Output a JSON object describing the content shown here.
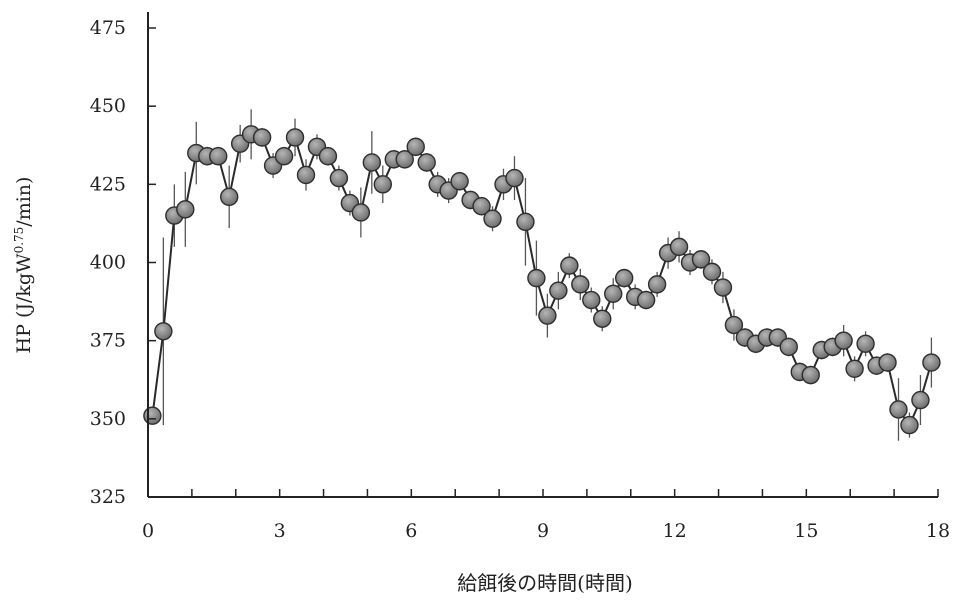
{
  "chart_data": {
    "type": "scatter",
    "title": "",
    "xlabel": "給餌後の時間(時間)",
    "ylabel_base": "HP (J/kgW",
    "ylabel_sup": "0.75",
    "ylabel_tail": "/min)",
    "xlim": [
      0,
      18
    ],
    "ylim": [
      325,
      475
    ],
    "xticks": [
      0,
      3,
      6,
      9,
      12,
      15,
      18
    ],
    "yticks": [
      325,
      350,
      375,
      400,
      425,
      450,
      475
    ],
    "grid": false,
    "series": [
      {
        "x": [
          0.1,
          0.35,
          0.6,
          0.85,
          1.1,
          1.35,
          1.6,
          1.85,
          2.1,
          2.35,
          2.6,
          2.85,
          3.1,
          3.35,
          3.6,
          3.85,
          4.1,
          4.35,
          4.6,
          4.85,
          5.1,
          5.35,
          5.6,
          5.85,
          6.1,
          6.35,
          6.6,
          6.85,
          7.1,
          7.35,
          7.6,
          7.85,
          8.1,
          8.35,
          8.6,
          8.85,
          9.1,
          9.35,
          9.6,
          9.85,
          10.1,
          10.35,
          10.6,
          10.85,
          11.1,
          11.35,
          11.6,
          11.85,
          12.1,
          12.35,
          12.6,
          12.85,
          13.1,
          13.35,
          13.6,
          13.85,
          14.1,
          14.35,
          14.6,
          14.85,
          15.1,
          15.35,
          15.6,
          15.85,
          16.1,
          16.35,
          16.6,
          16.85,
          17.1,
          17.35,
          17.6,
          17.85
        ],
        "y": [
          351,
          378,
          415,
          417,
          435,
          434,
          434,
          421,
          438,
          441,
          440,
          431,
          434,
          440,
          428,
          437,
          434,
          427,
          419,
          416,
          432,
          425,
          433,
          433,
          437,
          432,
          425,
          423,
          426,
          420,
          418,
          414,
          425,
          427,
          413,
          395,
          383,
          391,
          399,
          393,
          388,
          382,
          390,
          395,
          389,
          388,
          393,
          403,
          405,
          400,
          401,
          397,
          392,
          380,
          376,
          374,
          376,
          376,
          373,
          365,
          364,
          372,
          373,
          375,
          366,
          374,
          367,
          368,
          353,
          348,
          356,
          368
        ],
        "err": [
          2,
          30,
          10,
          12,
          10,
          3,
          3,
          10,
          6,
          8,
          3,
          4,
          3,
          6,
          5,
          4,
          3,
          4,
          4,
          8,
          10,
          6,
          3,
          3,
          3,
          3,
          4,
          4,
          3,
          3,
          3,
          4,
          5,
          7,
          14,
          12,
          7,
          6,
          4,
          5,
          4,
          4,
          5,
          3,
          4,
          3,
          4,
          5,
          5,
          4,
          3,
          4,
          5,
          5,
          3,
          3,
          3,
          3,
          3,
          3,
          3,
          3,
          3,
          5,
          4,
          4,
          3,
          3,
          10,
          4,
          8,
          8
        ]
      }
    ],
    "colors": {
      "marker_fill": "#8a8a8a",
      "marker_stroke": "#2e2e2e",
      "line": "#2a2a2a",
      "errbar": "#555555",
      "axis": "#222222"
    }
  }
}
